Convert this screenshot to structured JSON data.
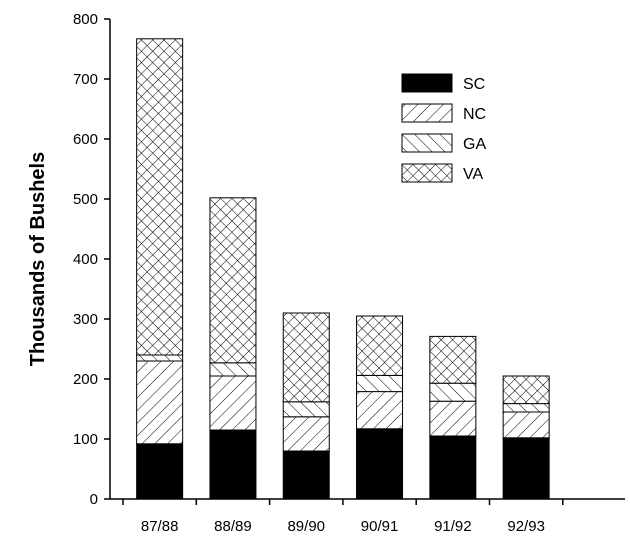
{
  "chart_data": {
    "type": "bar",
    "stacked": true,
    "title": "",
    "xlabel": "",
    "ylabel": "Thousands of Bushels",
    "categories": [
      "87/88",
      "88/89",
      "89/90",
      "90/91",
      "91/92",
      "92/93"
    ],
    "ylim": [
      0,
      800
    ],
    "yticks": [
      0,
      100,
      200,
      300,
      400,
      500,
      600,
      700,
      800
    ],
    "grid": false,
    "legend_position": "top-right",
    "series": [
      {
        "name": "SC",
        "pattern": "solid",
        "color": "#000000",
        "values": [
          92,
          115,
          80,
          117,
          105,
          102
        ]
      },
      {
        "name": "NC",
        "pattern": "diagonal-hatch",
        "color": "#000000",
        "values": [
          138,
          90,
          57,
          62,
          58,
          43
        ]
      },
      {
        "name": "GA",
        "pattern": "back-diagonal-hatch",
        "color": "#000000",
        "values": [
          10,
          22,
          25,
          27,
          30,
          14
        ]
      },
      {
        "name": "VA",
        "pattern": "crosshatch",
        "color": "#000000",
        "values": [
          527,
          275,
          148,
          99,
          78,
          46
        ]
      }
    ]
  }
}
